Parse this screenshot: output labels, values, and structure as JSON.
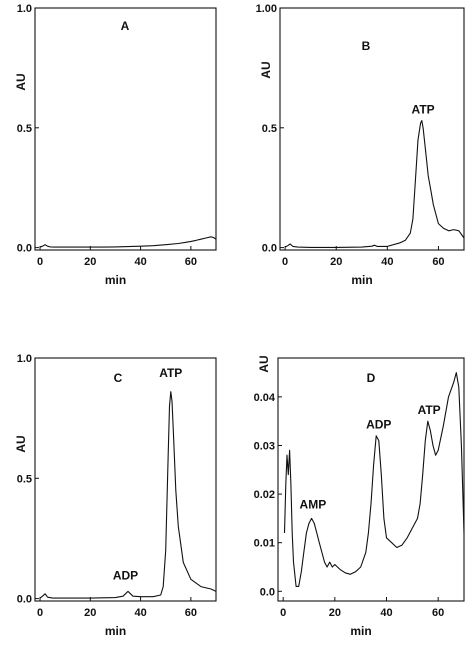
{
  "figure": {
    "line_color": "#111111",
    "background": "#ffffff"
  },
  "chart_data": [
    {
      "type": "line",
      "panel": "A",
      "xlabel": "min",
      "ylabel": "AU",
      "xlim": [
        -2,
        70
      ],
      "ylim": [
        -0.01,
        1.0
      ],
      "xticks": [
        0,
        20,
        40,
        60
      ],
      "yticks": [
        0.0,
        0.5,
        1.0
      ],
      "ytick_labels": [
        "0.0",
        "0.5",
        "1.0"
      ],
      "grid": false,
      "annotations": [],
      "series": [
        {
          "x": [
            0,
            1,
            2,
            3,
            4,
            6,
            10,
            15,
            20,
            25,
            30,
            35,
            40,
            45,
            50,
            55,
            58,
            60,
            62,
            64,
            66,
            68,
            69,
            70
          ],
          "y": [
            0.002,
            0.006,
            0.012,
            0.006,
            0.003,
            0.002,
            0.002,
            0.002,
            0.002,
            0.002,
            0.003,
            0.004,
            0.006,
            0.008,
            0.012,
            0.017,
            0.022,
            0.026,
            0.03,
            0.035,
            0.04,
            0.045,
            0.042,
            0.035
          ]
        }
      ]
    },
    {
      "type": "line",
      "panel": "B",
      "xlabel": "min",
      "ylabel": "AU",
      "xlim": [
        -2,
        70
      ],
      "ylim": [
        -0.01,
        1.0
      ],
      "xticks": [
        0,
        20,
        40,
        60
      ],
      "yticks": [
        0.0,
        0.5,
        1.0
      ],
      "ytick_labels": [
        "0.0",
        "0.5",
        "1.00"
      ],
      "grid": false,
      "annotations": [
        {
          "text": "ATP",
          "x": 54,
          "y": 0.56
        }
      ],
      "series": [
        {
          "x": [
            0,
            1,
            2,
            3,
            5,
            10,
            20,
            30,
            34,
            35,
            36,
            40,
            45,
            47,
            49,
            50,
            51,
            52,
            53,
            53.5,
            54,
            55,
            56,
            57,
            58,
            60,
            62,
            64,
            66,
            68,
            70
          ],
          "y": [
            0.002,
            0.008,
            0.015,
            0.005,
            0.002,
            0.001,
            0.001,
            0.002,
            0.006,
            0.01,
            0.005,
            0.005,
            0.02,
            0.03,
            0.06,
            0.12,
            0.28,
            0.45,
            0.52,
            0.53,
            0.5,
            0.4,
            0.3,
            0.24,
            0.18,
            0.1,
            0.08,
            0.07,
            0.075,
            0.07,
            0.04
          ]
        }
      ]
    },
    {
      "type": "line",
      "panel": "C",
      "xlabel": "min",
      "ylabel": "AU",
      "xlim": [
        -2,
        70
      ],
      "ylim": [
        -0.01,
        1.0
      ],
      "xticks": [
        0,
        20,
        40,
        60
      ],
      "yticks": [
        0.0,
        0.5,
        1.0
      ],
      "ytick_labels": [
        "0.0",
        "0.5",
        "1.0"
      ],
      "grid": false,
      "annotations": [
        {
          "text": "ADP",
          "x": 34,
          "y": 0.08
        },
        {
          "text": "ATP",
          "x": 52,
          "y": 0.92
        }
      ],
      "series": [
        {
          "x": [
            0,
            1,
            2,
            3,
            5,
            10,
            20,
            30,
            33,
            34,
            35,
            36,
            37,
            40,
            45,
            48,
            49,
            50,
            51,
            51.5,
            52,
            52.5,
            53,
            54,
            55,
            57,
            60,
            64,
            68,
            70
          ],
          "y": [
            0.002,
            0.01,
            0.02,
            0.006,
            0.002,
            0.002,
            0.002,
            0.004,
            0.01,
            0.02,
            0.03,
            0.02,
            0.01,
            0.008,
            0.008,
            0.015,
            0.05,
            0.2,
            0.6,
            0.8,
            0.86,
            0.82,
            0.7,
            0.45,
            0.3,
            0.15,
            0.08,
            0.05,
            0.04,
            0.03
          ]
        }
      ]
    },
    {
      "type": "line",
      "panel": "D",
      "xlabel": "min",
      "ylabel": "AU",
      "xlim": [
        -2,
        70
      ],
      "ylim": [
        -0.002,
        0.048
      ],
      "xticks": [
        0,
        20,
        40,
        60
      ],
      "yticks": [
        0.0,
        0.01,
        0.02,
        0.03,
        0.04
      ],
      "ytick_labels": [
        "0.0",
        "0.01",
        "0.02",
        "0.03",
        "0.04"
      ],
      "grid": false,
      "annotations": [
        {
          "text": "AMP",
          "x": 11.5,
          "y": 0.017
        },
        {
          "text": "ADP",
          "x": 37,
          "y": 0.0335
        },
        {
          "text": "ATP",
          "x": 56.5,
          "y": 0.0365
        }
      ],
      "series": [
        {
          "x": [
            0.5,
            1,
            1.5,
            2,
            2.5,
            3,
            3.5,
            4,
            5,
            6,
            7,
            8,
            9,
            10,
            11,
            12,
            13,
            14,
            15,
            16,
            17,
            18,
            19,
            20,
            22,
            24,
            26,
            28,
            30,
            32,
            33,
            34,
            35,
            36,
            37,
            38,
            39,
            40,
            42,
            44,
            46,
            48,
            50,
            52,
            53,
            54,
            55,
            56,
            57,
            58,
            59,
            60,
            62,
            64,
            66,
            67,
            68,
            69,
            70
          ],
          "y": [
            0.012,
            0.022,
            0.028,
            0.024,
            0.029,
            0.022,
            0.012,
            0.006,
            0.001,
            0.001,
            0.004,
            0.008,
            0.012,
            0.014,
            0.015,
            0.014,
            0.012,
            0.01,
            0.008,
            0.006,
            0.005,
            0.006,
            0.005,
            0.0055,
            0.0045,
            0.0038,
            0.0035,
            0.004,
            0.005,
            0.008,
            0.012,
            0.018,
            0.026,
            0.032,
            0.031,
            0.024,
            0.015,
            0.011,
            0.01,
            0.009,
            0.0095,
            0.011,
            0.013,
            0.015,
            0.018,
            0.024,
            0.031,
            0.035,
            0.033,
            0.03,
            0.028,
            0.029,
            0.034,
            0.04,
            0.043,
            0.045,
            0.042,
            0.03,
            0.012
          ]
        }
      ]
    }
  ]
}
